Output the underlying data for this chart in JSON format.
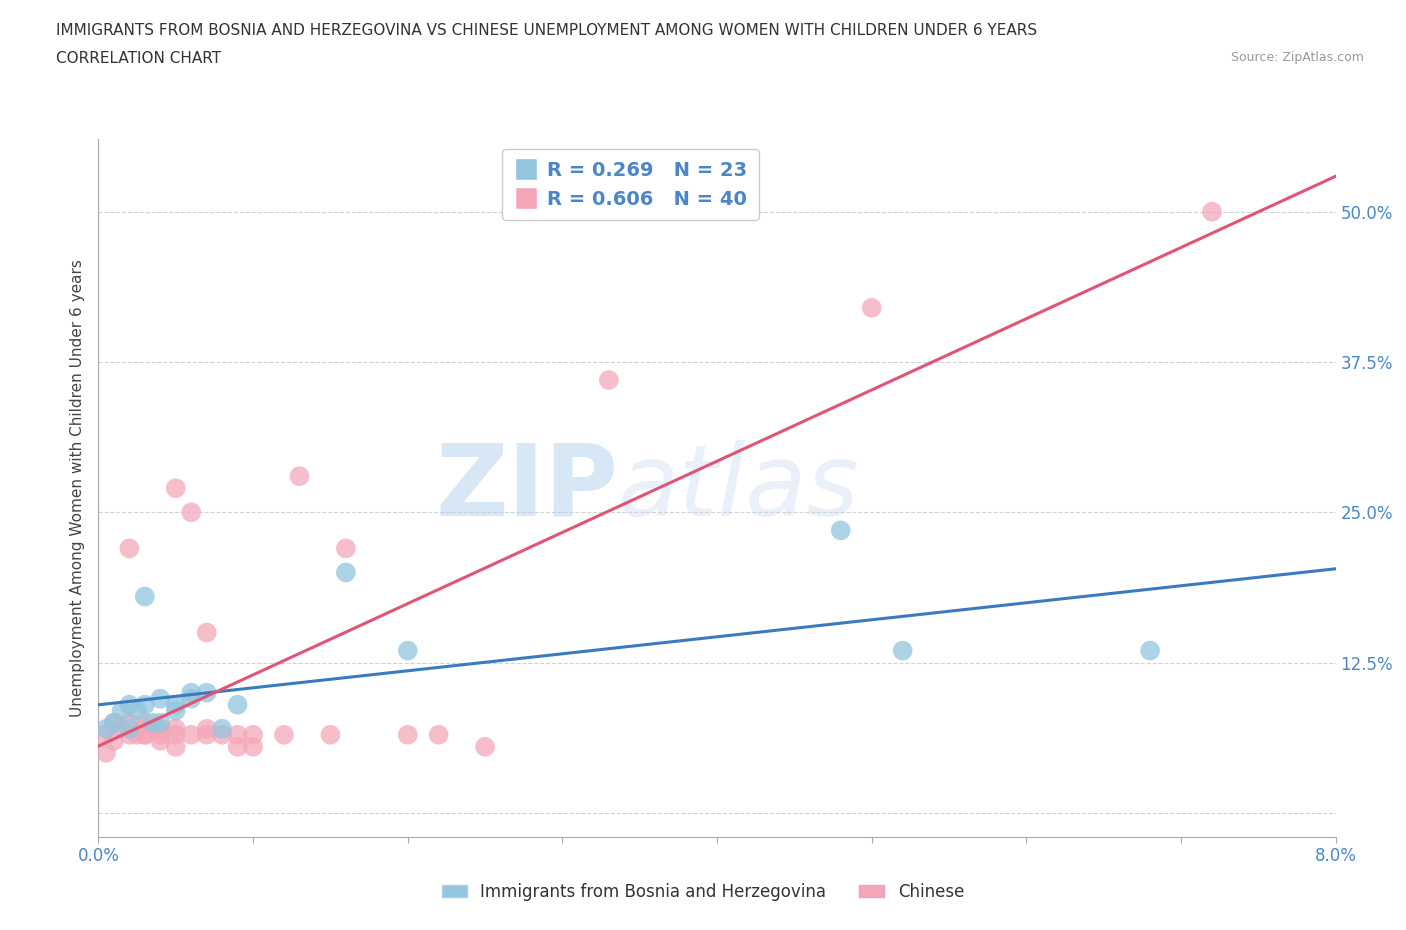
{
  "title_line1": "IMMIGRANTS FROM BOSNIA AND HERZEGOVINA VS CHINESE UNEMPLOYMENT AMONG WOMEN WITH CHILDREN UNDER 6 YEARS",
  "title_line2": "CORRELATION CHART",
  "source": "Source: ZipAtlas.com",
  "ylabel": "Unemployment Among Women with Children Under 6 years",
  "xlim": [
    0.0,
    0.08
  ],
  "ylim": [
    -0.02,
    0.56
  ],
  "yticks": [
    0.0,
    0.125,
    0.25,
    0.375,
    0.5
  ],
  "ytick_labels": [
    "",
    "12.5%",
    "25.0%",
    "37.5%",
    "50.0%"
  ],
  "R_bosnia": 0.269,
  "N_bosnia": 23,
  "R_chinese": 0.606,
  "N_chinese": 40,
  "color_bosnia": "#92c5de",
  "color_chinese": "#f4a7b9",
  "line_color_bosnia": "#3a7bbf",
  "line_color_chinese": "#e05575",
  "watermark_zip": "ZIP",
  "watermark_atlas": "atlas",
  "bosnia_x": [
    0.0005,
    0.001,
    0.0015,
    0.002,
    0.002,
    0.0025,
    0.003,
    0.003,
    0.0035,
    0.004,
    0.004,
    0.005,
    0.005,
    0.006,
    0.006,
    0.007,
    0.008,
    0.009,
    0.016,
    0.02,
    0.048,
    0.052,
    0.068
  ],
  "bosnia_y": [
    0.07,
    0.075,
    0.085,
    0.07,
    0.09,
    0.085,
    0.09,
    0.18,
    0.075,
    0.075,
    0.095,
    0.09,
    0.085,
    0.095,
    0.1,
    0.1,
    0.07,
    0.09,
    0.2,
    0.135,
    0.235,
    0.135,
    0.135
  ],
  "chinese_x": [
    0.0003,
    0.0005,
    0.001,
    0.001,
    0.0015,
    0.002,
    0.002,
    0.002,
    0.0025,
    0.003,
    0.003,
    0.003,
    0.003,
    0.004,
    0.004,
    0.004,
    0.005,
    0.005,
    0.005,
    0.005,
    0.006,
    0.006,
    0.007,
    0.007,
    0.007,
    0.008,
    0.009,
    0.009,
    0.01,
    0.01,
    0.012,
    0.013,
    0.015,
    0.016,
    0.02,
    0.022,
    0.025,
    0.033,
    0.05,
    0.072
  ],
  "chinese_y": [
    0.065,
    0.05,
    0.06,
    0.075,
    0.07,
    0.065,
    0.075,
    0.22,
    0.065,
    0.065,
    0.065,
    0.07,
    0.075,
    0.065,
    0.06,
    0.07,
    0.07,
    0.055,
    0.065,
    0.27,
    0.065,
    0.25,
    0.065,
    0.07,
    0.15,
    0.065,
    0.065,
    0.055,
    0.055,
    0.065,
    0.065,
    0.28,
    0.065,
    0.22,
    0.065,
    0.065,
    0.055,
    0.36,
    0.42,
    0.5
  ]
}
